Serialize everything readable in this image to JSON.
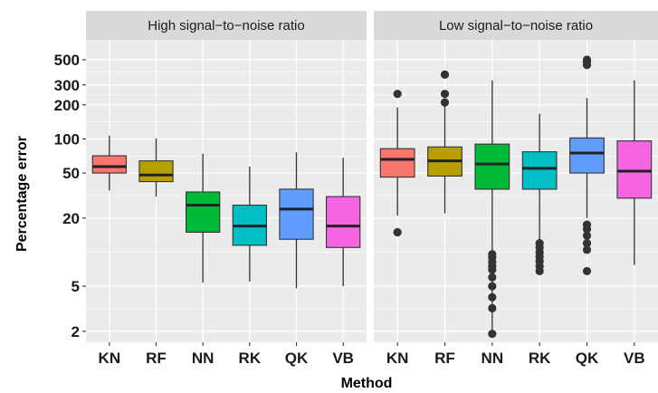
{
  "chart_data": {
    "type": "box",
    "xlabel": "Method",
    "ylabel": "Percentage error",
    "yscale": "log",
    "ylim": [
      1.6,
      750
    ],
    "yticks": [
      2,
      5,
      20,
      50,
      100,
      200,
      300,
      500
    ],
    "ytick_labels": [
      "2",
      "5",
      "20",
      "50",
      "100",
      "200",
      "300",
      "500"
    ],
    "categories": [
      "KN",
      "RF",
      "NN",
      "RK",
      "QK",
      "VB"
    ],
    "colors": {
      "KN": "#F8766D",
      "RF": "#B79F00",
      "NN": "#00BA38",
      "RK": "#00BFC4",
      "QK": "#619CFF",
      "VB": "#F564E3"
    },
    "panels": [
      {
        "title": "High signal−to−noise ratio",
        "boxes": [
          {
            "method": "KN",
            "whisker_low": 35,
            "q1": 50,
            "median": 57,
            "q3": 71,
            "whisker_high": 107,
            "outliers": []
          },
          {
            "method": "RF",
            "whisker_low": 31,
            "q1": 42,
            "median": 48,
            "q3": 64,
            "whisker_high": 101,
            "outliers": []
          },
          {
            "method": "NN",
            "whisker_low": 5.4,
            "q1": 15,
            "median": 26,
            "q3": 34,
            "whisker_high": 74,
            "outliers": []
          },
          {
            "method": "RK",
            "whisker_low": 5.5,
            "q1": 11.5,
            "median": 17,
            "q3": 26,
            "whisker_high": 57,
            "outliers": []
          },
          {
            "method": "QK",
            "whisker_low": 4.8,
            "q1": 13,
            "median": 24,
            "q3": 36,
            "whisker_high": 76,
            "outliers": []
          },
          {
            "method": "VB",
            "whisker_low": 5.0,
            "q1": 11,
            "median": 17,
            "q3": 31,
            "whisker_high": 68,
            "outliers": []
          }
        ]
      },
      {
        "title": "Low signal−to−noise ratio",
        "boxes": [
          {
            "method": "KN",
            "whisker_low": 21,
            "q1": 46,
            "median": 66,
            "q3": 82,
            "whisker_high": 190,
            "outliers": [
              15,
              250
            ]
          },
          {
            "method": "RF",
            "whisker_low": 22,
            "q1": 47,
            "median": 64,
            "q3": 85,
            "whisker_high": 195,
            "outliers": [
              210,
              250,
              370
            ]
          },
          {
            "method": "NN",
            "whisker_low": 1.9,
            "q1": 36,
            "median": 60,
            "q3": 90,
            "whisker_high": 330,
            "outliers": [
              1.9,
              3.2,
              4.0,
              5.0,
              6.0,
              7.0,
              7.5,
              8.2,
              9.0,
              9.6
            ]
          },
          {
            "method": "RK",
            "whisker_low": 11,
            "q1": 36,
            "median": 55,
            "q3": 77,
            "whisker_high": 167,
            "outliers": [
              6.8,
              7.5,
              8.3,
              9.1,
              10,
              11,
              12
            ]
          },
          {
            "method": "QK",
            "whisker_low": 20,
            "q1": 50,
            "median": 75,
            "q3": 102,
            "whisker_high": 230,
            "outliers": [
              6.8,
              10.5,
              12,
              14,
              16,
              17.5,
              450,
              480,
              500
            ]
          },
          {
            "method": "VB",
            "whisker_low": 7.7,
            "q1": 30,
            "median": 52,
            "q3": 96,
            "whisker_high": 330,
            "outliers": []
          }
        ]
      }
    ]
  }
}
